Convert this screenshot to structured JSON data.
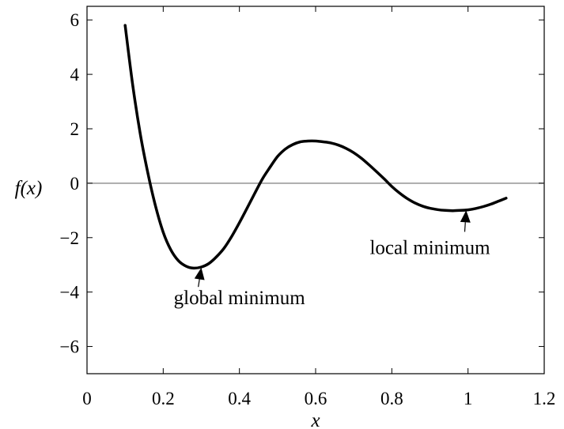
{
  "chart_data": {
    "type": "line",
    "xlabel": "x",
    "ylabel": "f(x)",
    "xlim": [
      0,
      1.2
    ],
    "ylim": [
      -7,
      6.5
    ],
    "x_ticks": [
      "0",
      "0.2",
      "0.4",
      "0.6",
      "0.8",
      "1",
      "1.2"
    ],
    "x_tick_values": [
      0,
      0.2,
      0.4,
      0.6,
      0.8,
      1,
      1.2
    ],
    "y_ticks": [
      "6",
      "4",
      "2",
      "0",
      "−2",
      "−4",
      "−6"
    ],
    "y_tick_values": [
      6,
      4,
      2,
      0,
      -2,
      -4,
      -6
    ],
    "grid": false,
    "reference_line": {
      "y": 0
    },
    "series": [
      {
        "x": [
          0.1,
          0.12,
          0.14,
          0.16,
          0.18,
          0.2,
          0.22,
          0.24,
          0.26,
          0.28,
          0.3,
          0.32,
          0.34,
          0.36,
          0.38,
          0.4,
          0.42,
          0.44,
          0.46,
          0.48,
          0.5,
          0.52,
          0.54,
          0.56,
          0.58,
          0.6,
          0.62,
          0.64,
          0.66,
          0.68,
          0.7,
          0.72,
          0.74,
          0.76,
          0.78,
          0.8,
          0.82,
          0.84,
          0.86,
          0.88,
          0.9,
          0.92,
          0.94,
          0.96,
          0.98,
          1.0,
          1.02,
          1.04,
          1.06,
          1.08,
          1.1
        ],
        "y": [
          5.8,
          3.6,
          1.8,
          0.35,
          -0.85,
          -1.8,
          -2.45,
          -2.85,
          -3.05,
          -3.12,
          -3.08,
          -2.95,
          -2.7,
          -2.38,
          -1.95,
          -1.45,
          -0.92,
          -0.38,
          0.15,
          0.58,
          0.98,
          1.25,
          1.42,
          1.52,
          1.55,
          1.55,
          1.52,
          1.48,
          1.4,
          1.28,
          1.12,
          0.92,
          0.68,
          0.42,
          0.16,
          -0.12,
          -0.36,
          -0.56,
          -0.72,
          -0.84,
          -0.92,
          -0.97,
          -1.0,
          -1.01,
          -1.0,
          -0.98,
          -0.93,
          -0.86,
          -0.77,
          -0.66,
          -0.55
        ]
      }
    ],
    "annotations": [
      {
        "text": "global minimum",
        "point": [
          0.3,
          -3.1
        ],
        "text_at": [
          0.4,
          -4.45
        ]
      },
      {
        "text": "local minimum",
        "point": [
          0.995,
          -1.0
        ],
        "text_at": [
          0.9,
          -2.6
        ]
      }
    ]
  }
}
